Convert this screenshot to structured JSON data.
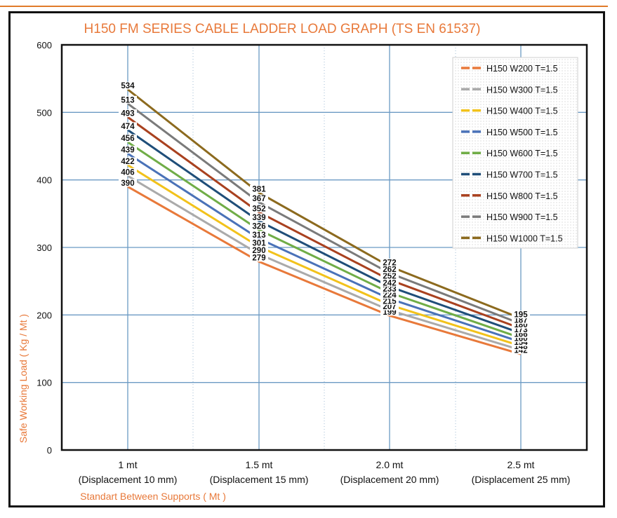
{
  "chart_data": {
    "type": "line",
    "title": "H150 FM SERIES CABLE LADDER LOAD GRAPH (TS EN 61537)",
    "ylabel": "Safe Working Load ( Kg / Mt )",
    "xlabel": "Standart Between Supports ( Mt )",
    "categories": [
      "1 mt",
      "1.5 mt",
      "2.0 mt",
      "2.5 mt"
    ],
    "category_sublabels": [
      "(Displacement 10 mm)",
      "(Displacement 15 mm)",
      "(Displacement 20 mm)",
      "(Displacement 25 mm)"
    ],
    "ylim": [
      0,
      600
    ],
    "yticks": [
      0,
      100,
      200,
      300,
      400,
      500,
      600
    ],
    "grid": true,
    "legend_position": "top-right",
    "series": [
      {
        "name": "H150 W200 T=1.5",
        "values": [
          390,
          279,
          199,
          142
        ],
        "color": "#e8793a"
      },
      {
        "name": "H150 W300 T=1.5",
        "values": [
          406,
          290,
          207,
          148
        ],
        "color": "#aaaaaa"
      },
      {
        "name": "H150 W400 T=1.5",
        "values": [
          422,
          301,
          215,
          154
        ],
        "color": "#f2c21b"
      },
      {
        "name": "H150 W500 T=1.5",
        "values": [
          439,
          313,
          224,
          160
        ],
        "color": "#4a72b8"
      },
      {
        "name": "H150 W600 T=1.5",
        "values": [
          456,
          326,
          233,
          166
        ],
        "color": "#70ad47"
      },
      {
        "name": "H150 W700 T=1.5",
        "values": [
          474,
          339,
          242,
          173
        ],
        "color": "#1f4e79"
      },
      {
        "name": "H150 W800 T=1.5",
        "values": [
          493,
          352,
          252,
          180
        ],
        "color": "#a9411f"
      },
      {
        "name": "H150 W900 T=1.5",
        "values": [
          513,
          367,
          262,
          187
        ],
        "color": "#7a7a7a"
      },
      {
        "name": "H150 W1000 T=1.5",
        "values": [
          534,
          381,
          272,
          195
        ],
        "color": "#8c6a1e"
      }
    ]
  },
  "colors": {
    "title": "#e8793a",
    "axis_label": "#e8793a",
    "grid": "#6b9ac4",
    "frame": "#111111"
  }
}
